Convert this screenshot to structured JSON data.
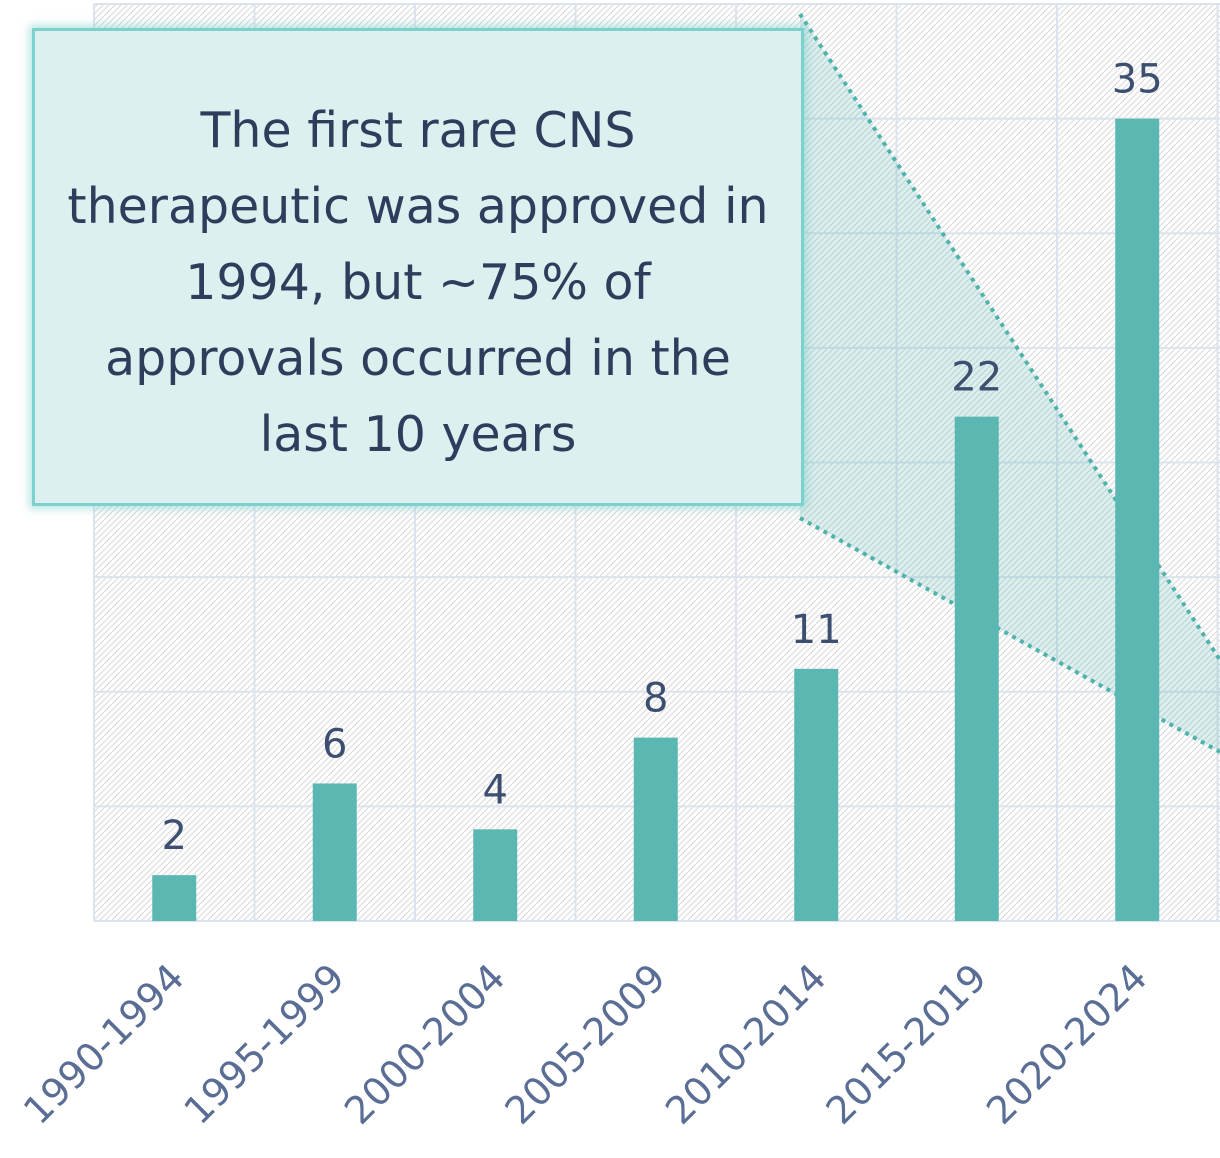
{
  "chart_data": {
    "type": "bar",
    "categories": [
      "1990-1994",
      "1995-1999",
      "2000-2004",
      "2005-2009",
      "2010-2014",
      "2015-2019",
      "2020-2024"
    ],
    "values": [
      2,
      6,
      4,
      8,
      11,
      22,
      35
    ],
    "ylim": [
      0,
      40
    ],
    "grid": true,
    "bar_color": "#5bb7b2",
    "annotation": {
      "text": "The first rare CNS therapeutic was approved in 1994, but ~75% of approvals occurred in the last 10 years",
      "background": "#ddf0ef",
      "border": "#7dd1cd"
    }
  }
}
